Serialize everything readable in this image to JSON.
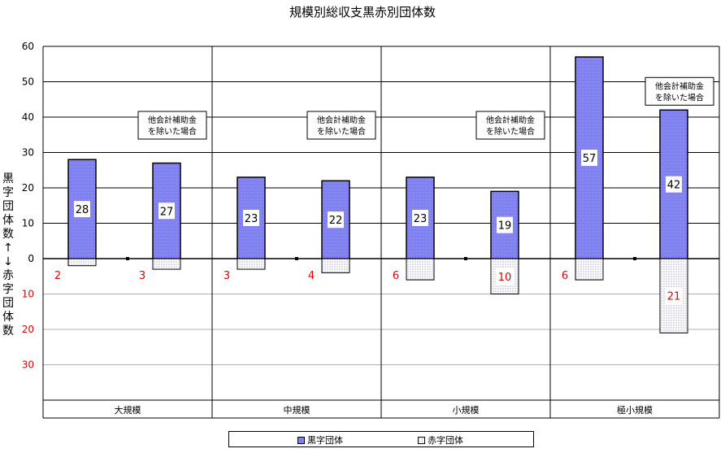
{
  "title": "規模別総収支黒赤別団体数",
  "ylabel_chars": [
    "黒",
    "字",
    "団",
    "体",
    "数",
    "↑",
    "↓",
    "赤",
    "字",
    "団",
    "体",
    "数"
  ],
  "legend": {
    "black_label": "黒字団体",
    "red_label": "赤字団体"
  },
  "colors": {
    "black_bar": "#8080f0",
    "red_bar_fill": "#ffffff",
    "red_text": "#e00000",
    "grid": "#000000"
  },
  "chart_data": {
    "type": "bar",
    "title": "規模別総収支黒赤別団体数",
    "ylim": [
      -30,
      60
    ],
    "y_ticks_positive": [
      "0",
      "10",
      "20",
      "30",
      "40",
      "50",
      "60"
    ],
    "y_ticks_negative": [
      "10",
      "20",
      "30"
    ],
    "groups": [
      "大規模",
      "中規模",
      "小規模",
      "極小規模"
    ],
    "note_label_line1": "他会計補助金",
    "note_label_line2": "を除いた場合",
    "series": [
      {
        "name": "黒字団体",
        "values": [
          28,
          27,
          23,
          22,
          23,
          19,
          57,
          42
        ]
      },
      {
        "name": "赤字団体",
        "values": [
          2,
          3,
          3,
          4,
          6,
          10,
          6,
          21
        ]
      }
    ],
    "bar_group_index": [
      0,
      0,
      1,
      1,
      2,
      2,
      3,
      3
    ],
    "bar_is_excluded_case": [
      false,
      true,
      false,
      true,
      false,
      true,
      false,
      true
    ],
    "grid": true,
    "legend_position": "bottom"
  }
}
